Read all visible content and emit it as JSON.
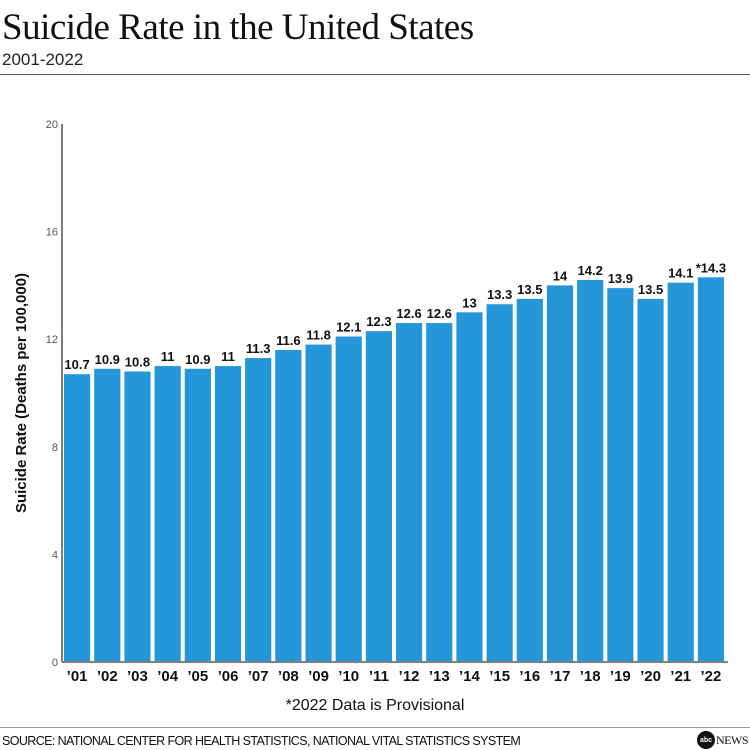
{
  "header": {
    "title": "Suicide Rate in the United States",
    "subtitle": "2001-2022"
  },
  "chart_data": {
    "type": "bar",
    "title": "Suicide Rate in the United States",
    "subtitle": "2001-2022",
    "xlabel": "",
    "ylabel": "Suicide Rate (Deaths per 100,000)",
    "ylim": [
      0,
      20
    ],
    "yticks": [
      0,
      4,
      8,
      12,
      16,
      20
    ],
    "grid": false,
    "bar_color": "#2596d8",
    "categories": [
      "'01",
      "'02",
      "'03",
      "'04",
      "'05",
      "'06",
      "'07",
      "'08",
      "'09",
      "'10",
      "'11",
      "'12",
      "'13",
      "'14",
      "'15",
      "'16",
      "'17",
      "'18",
      "'19",
      "'20",
      "'21",
      "'22"
    ],
    "values": [
      10.7,
      10.9,
      10.8,
      11,
      10.9,
      11,
      11.3,
      11.6,
      11.8,
      12.1,
      12.3,
      12.6,
      12.6,
      13,
      13.3,
      13.5,
      14,
      14.2,
      13.9,
      13.5,
      14.1,
      14.3
    ],
    "data_labels": [
      "10.7",
      "10.9",
      "10.8",
      "11",
      "10.9",
      "11",
      "11.3",
      "11.6",
      "11.8",
      "12.1",
      "12.3",
      "12.6",
      "12.6",
      "13",
      "13.3",
      "13.5",
      "14",
      "14.2",
      "13.9",
      "13.5",
      "14.1",
      "*14.3"
    ]
  },
  "footer": {
    "note": "*2022 Data is Provisional",
    "source": "SOURCE: NATIONAL CENTER FOR HEALTH STATISTICS, NATIONAL VITAL STATISTICS SYSTEM",
    "logo_text": "abcNEWS"
  }
}
